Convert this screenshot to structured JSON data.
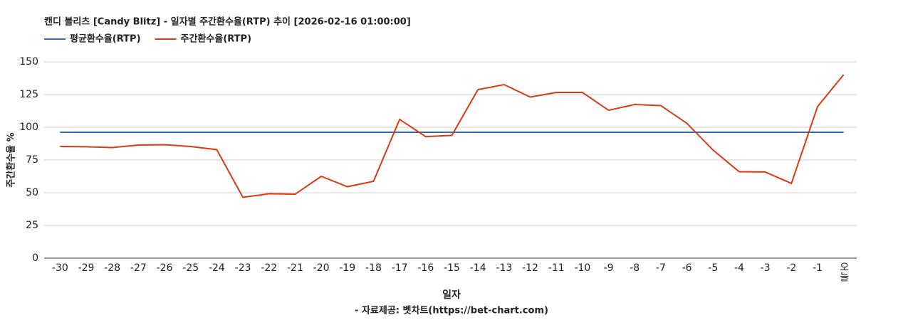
{
  "chart_data": {
    "type": "line",
    "title": "캔디 블리츠 [Candy Blitz] - 일자별 주간환수율(RTP) 추이 [2026-02-16 01:00:00]",
    "x_label": "일자",
    "y_label": "주간환수율 %",
    "source": "- 자료제공: 벳차트(https://bet-chart.com)",
    "categories": [
      "-30",
      "-29",
      "-28",
      "-27",
      "-26",
      "-25",
      "-24",
      "-23",
      "-22",
      "-21",
      "-20",
      "-19",
      "-18",
      "-17",
      "-16",
      "-15",
      "-14",
      "-13",
      "-12",
      "-11",
      "-10",
      "-9",
      "-8",
      "-7",
      "-6",
      "-5",
      "-4",
      "-3",
      "-2",
      "-1",
      "오늘"
    ],
    "series": [
      {
        "name": "평균환수율(RTP)",
        "color": "#3366cc",
        "values": [
          96.2,
          96.2,
          96.2,
          96.2,
          96.2,
          96.2,
          96.2,
          96.2,
          96.2,
          96.2,
          96.2,
          96.2,
          96.2,
          96.2,
          96.2,
          96.2,
          96.2,
          96.2,
          96.2,
          96.2,
          96.2,
          96.2,
          96.2,
          96.2,
          96.2,
          96.2,
          96.2,
          96.2,
          96.2,
          96.2,
          96.2
        ]
      },
      {
        "name": "주간환수율(RTP)",
        "color": "#dc3912",
        "values": [
          85.3,
          85.1,
          84.5,
          86.4,
          86.7,
          85.3,
          82.9,
          46.5,
          49.2,
          48.9,
          62.5,
          54.6,
          58.7,
          106,
          92.9,
          93.8,
          128.8,
          132.6,
          123.1,
          126.6,
          126.6,
          113,
          117.4,
          116.6,
          103,
          82.6,
          66,
          65.8,
          57.1,
          115.8,
          140.2
        ]
      }
    ],
    "ylim": [
      0,
      150
    ],
    "yticks": [
      0,
      25,
      50,
      75,
      100,
      125,
      150
    ],
    "grid": true,
    "legend": "top-left"
  }
}
